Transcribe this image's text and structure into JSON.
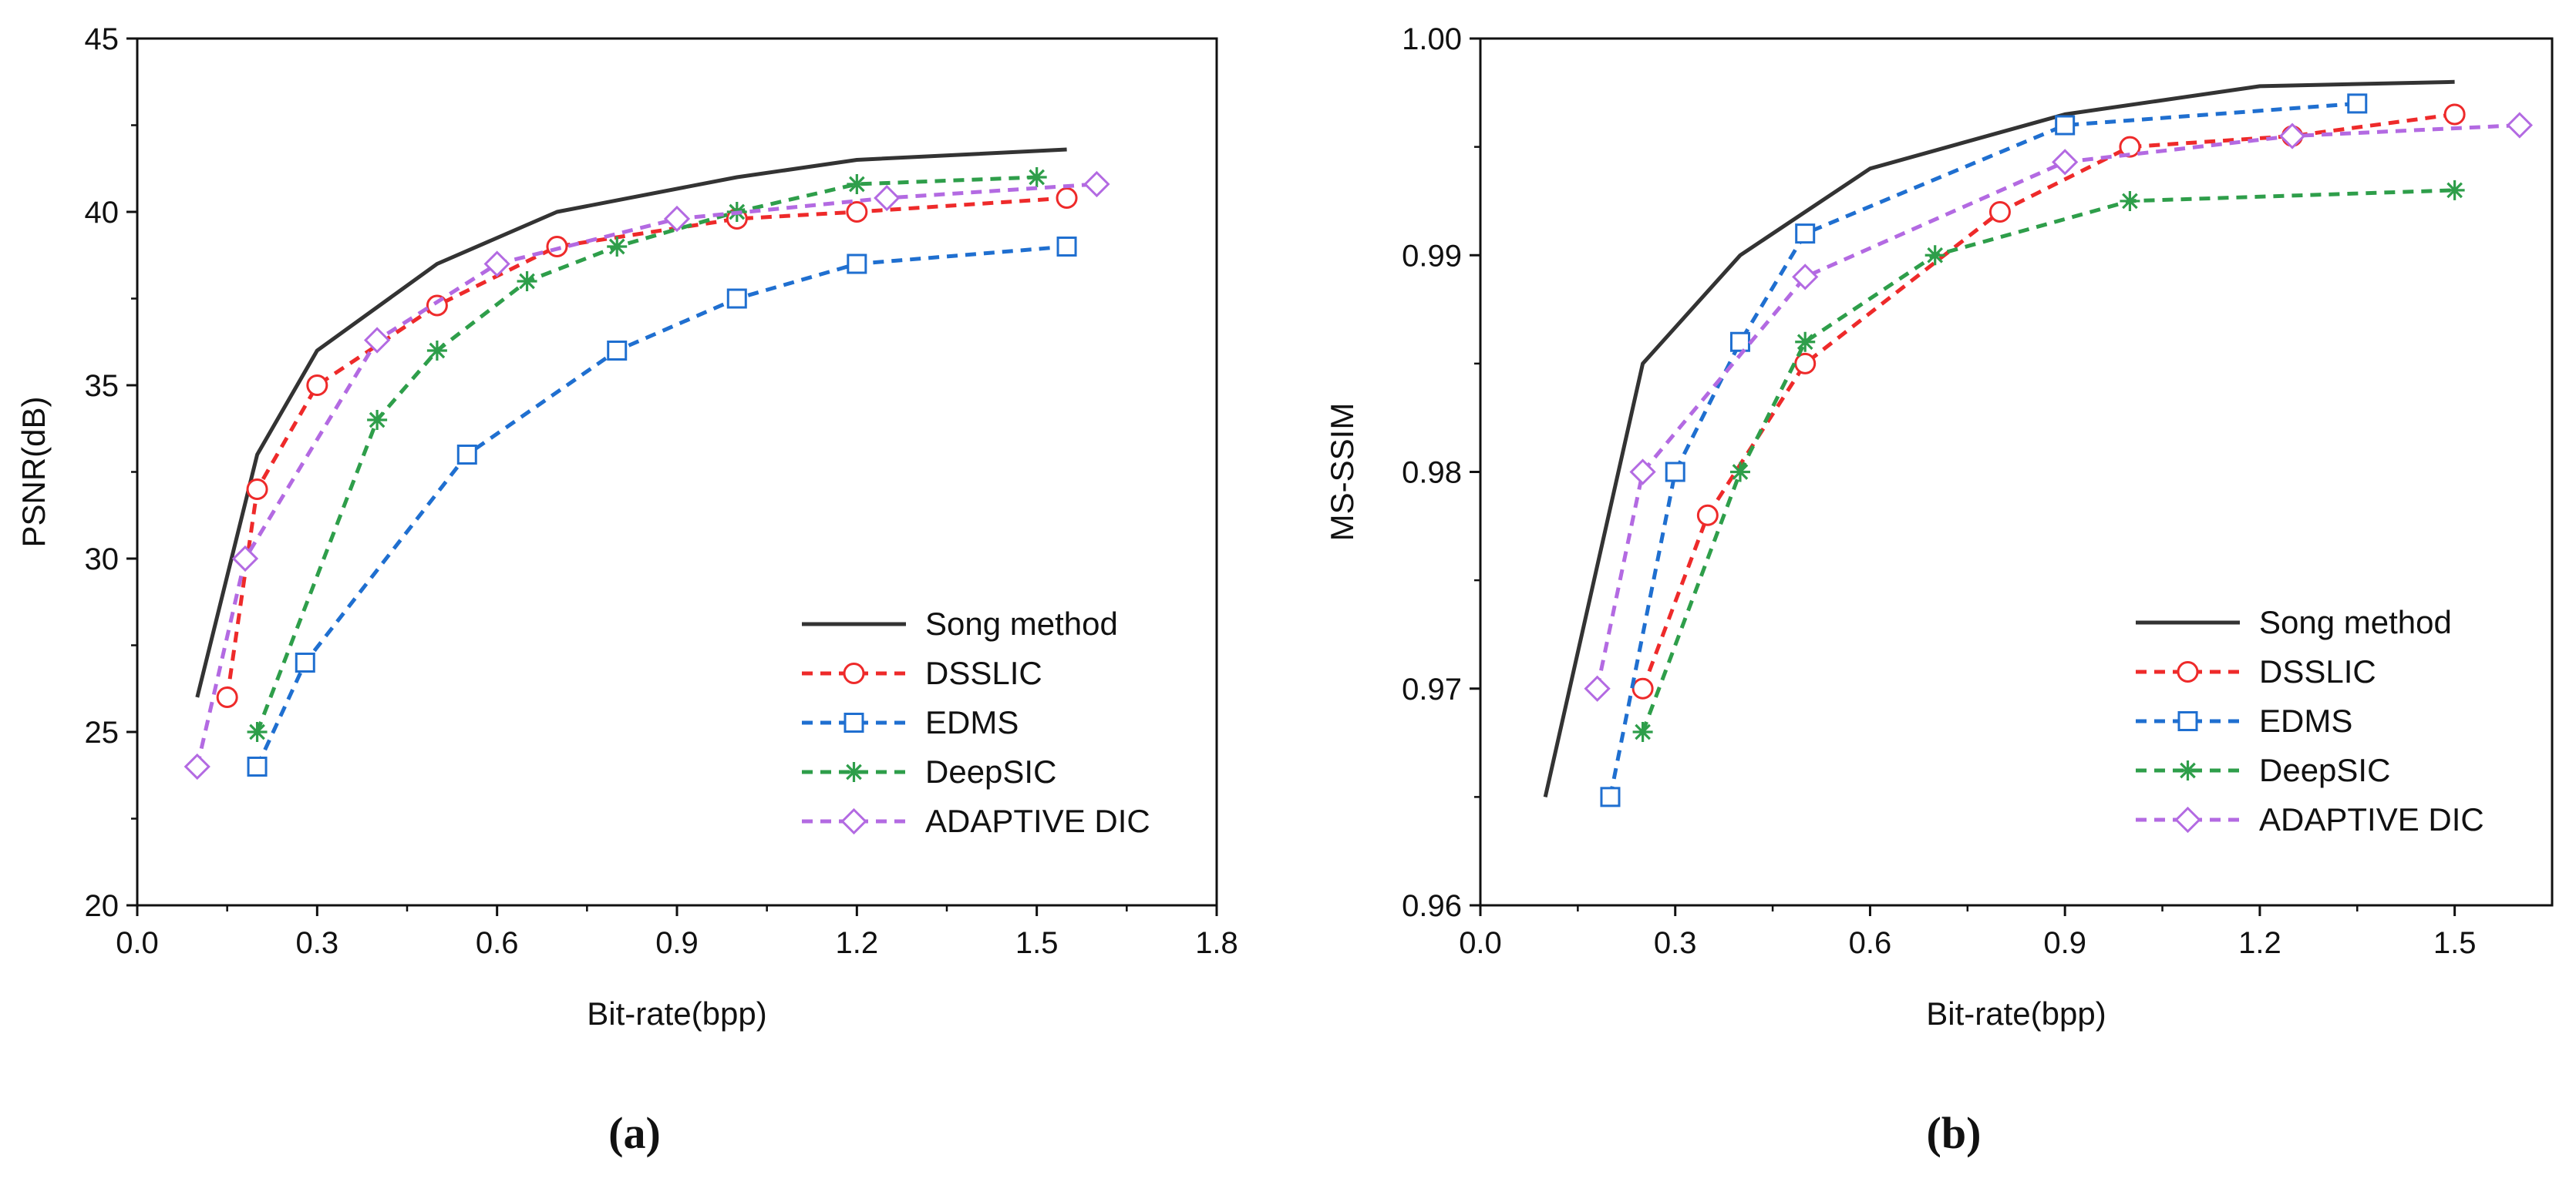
{
  "chart_data": [
    {
      "type": "line",
      "panel_label": "(a)",
      "xlabel": "Bit-rate(bpp)",
      "ylabel": "PSNR(dB)",
      "xlim": [
        0.0,
        1.8
      ],
      "ylim": [
        20,
        45
      ],
      "xticks": [
        "0.0",
        "0.3",
        "0.6",
        "0.9",
        "1.2",
        "1.5",
        "1.8"
      ],
      "yticks": [
        "20",
        "25",
        "30",
        "35",
        "40",
        "45"
      ],
      "legend": "bottom-right",
      "series": [
        {
          "name": "Song method",
          "color": "#333333",
          "marker": "none",
          "dash": "solid",
          "x": [
            0.1,
            0.2,
            0.3,
            0.5,
            0.7,
            1.0,
            1.2,
            1.55
          ],
          "y": [
            26,
            33,
            36,
            38.5,
            40,
            41,
            41.5,
            41.8
          ]
        },
        {
          "name": "DSSLIC",
          "color": "#ee2a2a",
          "marker": "circle",
          "dash": "dashed",
          "x": [
            0.15,
            0.2,
            0.3,
            0.5,
            0.7,
            1.0,
            1.2,
            1.55
          ],
          "y": [
            26,
            32,
            35,
            37.3,
            39,
            39.8,
            40,
            40.4
          ]
        },
        {
          "name": "EDMS",
          "color": "#1f6fd0",
          "marker": "square",
          "dash": "dashed",
          "x": [
            0.2,
            0.28,
            0.55,
            0.8,
            1.0,
            1.2,
            1.55
          ],
          "y": [
            24,
            27,
            33,
            36,
            37.5,
            38.5,
            39
          ]
        },
        {
          "name": "DeepSIC",
          "color": "#2e9e4a",
          "marker": "asterisk",
          "dash": "dashed",
          "x": [
            0.2,
            0.4,
            0.5,
            0.65,
            0.8,
            1.0,
            1.2,
            1.5
          ],
          "y": [
            25,
            34,
            36,
            38,
            39,
            40,
            40.8,
            41
          ]
        },
        {
          "name": "ADAPTIVE DIC",
          "color": "#b36ae2",
          "marker": "diamond",
          "dash": "dashed",
          "x": [
            0.1,
            0.18,
            0.4,
            0.6,
            0.9,
            1.25,
            1.6
          ],
          "y": [
            24,
            30,
            36.3,
            38.5,
            39.8,
            40.4,
            40.8
          ]
        }
      ]
    },
    {
      "type": "line",
      "panel_label": "(b)",
      "xlabel": "Bit-rate(bpp)",
      "ylabel": "MS-SSIM",
      "xlim": [
        0.0,
        1.65
      ],
      "ylim": [
        0.96,
        1.0
      ],
      "xticks": [
        "0.0",
        "0.3",
        "0.6",
        "0.9",
        "1.2",
        "1.5"
      ],
      "yticks": [
        "0.96",
        "0.97",
        "0.98",
        "0.99",
        "1.00"
      ],
      "legend": "bottom-right",
      "series": [
        {
          "name": "Song method",
          "color": "#333333",
          "marker": "none",
          "dash": "solid",
          "x": [
            0.1,
            0.25,
            0.4,
            0.6,
            0.9,
            1.2,
            1.5
          ],
          "y": [
            0.965,
            0.985,
            0.99,
            0.994,
            0.9965,
            0.9978,
            0.998
          ]
        },
        {
          "name": "DSSLIC",
          "color": "#ee2a2a",
          "marker": "circle",
          "dash": "dashed",
          "x": [
            0.25,
            0.35,
            0.5,
            0.8,
            1.0,
            1.25,
            1.5
          ],
          "y": [
            0.97,
            0.978,
            0.985,
            0.992,
            0.995,
            0.9955,
            0.9965
          ]
        },
        {
          "name": "EDMS",
          "color": "#1f6fd0",
          "marker": "square",
          "dash": "dashed",
          "x": [
            0.2,
            0.3,
            0.4,
            0.5,
            0.9,
            1.35
          ],
          "y": [
            0.965,
            0.98,
            0.986,
            0.991,
            0.996,
            0.997
          ]
        },
        {
          "name": "DeepSIC",
          "color": "#2e9e4a",
          "marker": "asterisk",
          "dash": "dashed",
          "x": [
            0.25,
            0.4,
            0.5,
            0.7,
            1.0,
            1.5
          ],
          "y": [
            0.968,
            0.98,
            0.986,
            0.99,
            0.9925,
            0.993
          ]
        },
        {
          "name": "ADAPTIVE DIC",
          "color": "#b36ae2",
          "marker": "diamond",
          "dash": "dashed",
          "x": [
            0.18,
            0.25,
            0.5,
            0.9,
            1.25,
            1.6
          ],
          "y": [
            0.97,
            0.98,
            0.989,
            0.9943,
            0.9955,
            0.996
          ]
        }
      ]
    }
  ]
}
